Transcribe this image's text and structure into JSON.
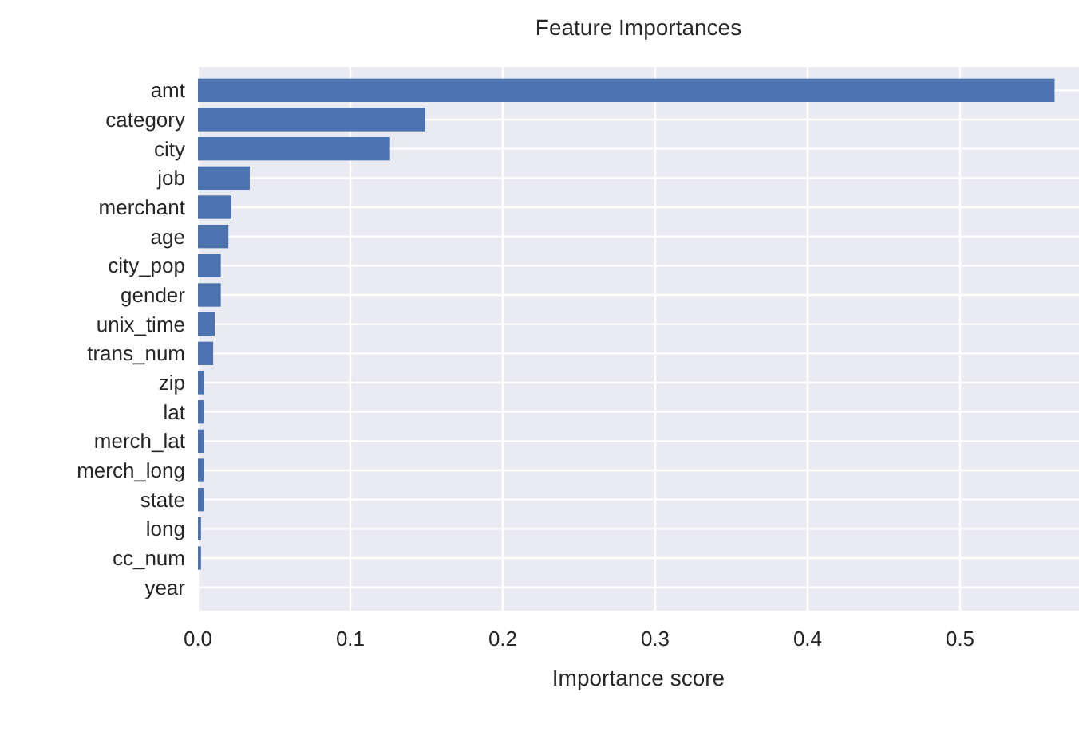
{
  "chart_data": {
    "type": "bar",
    "orientation": "horizontal",
    "title": "Feature Importances",
    "xlabel": "Importance score",
    "categories": [
      "amt",
      "category",
      "city",
      "job",
      "merchant",
      "age",
      "city_pop",
      "gender",
      "unix_time",
      "trans_num",
      "zip",
      "lat",
      "merch_lat",
      "merch_long",
      "state",
      "long",
      "cc_num",
      "year"
    ],
    "values": [
      0.562,
      0.149,
      0.126,
      0.034,
      0.022,
      0.02,
      0.015,
      0.015,
      0.011,
      0.01,
      0.004,
      0.004,
      0.004,
      0.004,
      0.004,
      0.002,
      0.002,
      0
    ],
    "color": "#4c72b0",
    "xlim": [
      0,
      0.578
    ],
    "xticks": [
      {
        "value": 0,
        "label": "0.0"
      },
      0.1,
      0.2,
      0.3,
      0.4,
      0.5
    ],
    "grid": true
  }
}
